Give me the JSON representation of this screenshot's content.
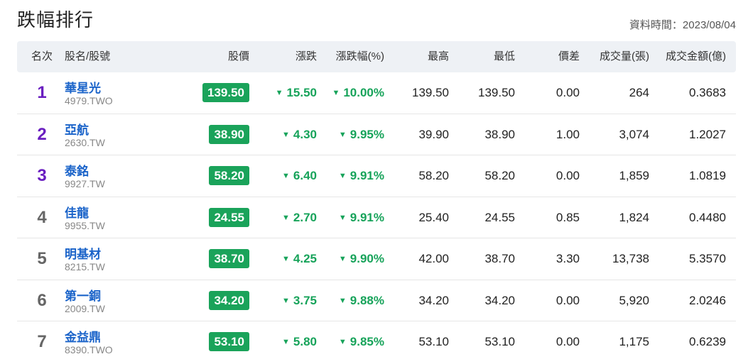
{
  "header": {
    "title": "跌幅排行",
    "updated": "資料時間：2023/08/04"
  },
  "columns": {
    "rank": "名次",
    "name": "股名/股號",
    "price": "股價",
    "change": "漲跌",
    "change_pct": "漲跌幅(%)",
    "high": "最高",
    "low": "最低",
    "diff": "價差",
    "volume": "成交量(張)",
    "amount": "成交金額(億)"
  },
  "colors": {
    "down_green": "#17a35a",
    "price_badge": "#1aa35a",
    "top_rank": "#6a1fc0",
    "stock_link": "#1a63c9"
  },
  "rows": [
    {
      "rank": "1",
      "name": "華星光",
      "code": "4979.TWO",
      "price": "139.50",
      "change": "15.50",
      "change_pct": "10.00%",
      "high": "139.50",
      "low": "139.50",
      "diff": "0.00",
      "volume": "264",
      "amount": "0.3683"
    },
    {
      "rank": "2",
      "name": "亞航",
      "code": "2630.TW",
      "price": "38.90",
      "change": "4.30",
      "change_pct": "9.95%",
      "high": "39.90",
      "low": "38.90",
      "diff": "1.00",
      "volume": "3,074",
      "amount": "1.2027"
    },
    {
      "rank": "3",
      "name": "泰銘",
      "code": "9927.TW",
      "price": "58.20",
      "change": "6.40",
      "change_pct": "9.91%",
      "high": "58.20",
      "low": "58.20",
      "diff": "0.00",
      "volume": "1,859",
      "amount": "1.0819"
    },
    {
      "rank": "4",
      "name": "佳龍",
      "code": "9955.TW",
      "price": "24.55",
      "change": "2.70",
      "change_pct": "9.91%",
      "high": "25.40",
      "low": "24.55",
      "diff": "0.85",
      "volume": "1,824",
      "amount": "0.4480"
    },
    {
      "rank": "5",
      "name": "明基材",
      "code": "8215.TW",
      "price": "38.70",
      "change": "4.25",
      "change_pct": "9.90%",
      "high": "42.00",
      "low": "38.70",
      "diff": "3.30",
      "volume": "13,738",
      "amount": "5.3570"
    },
    {
      "rank": "6",
      "name": "第一銅",
      "code": "2009.TW",
      "price": "34.20",
      "change": "3.75",
      "change_pct": "9.88%",
      "high": "34.20",
      "low": "34.20",
      "diff": "0.00",
      "volume": "5,920",
      "amount": "2.0246"
    },
    {
      "rank": "7",
      "name": "金益鼎",
      "code": "8390.TWO",
      "price": "53.10",
      "change": "5.80",
      "change_pct": "9.85%",
      "high": "53.10",
      "low": "53.10",
      "diff": "0.00",
      "volume": "1,175",
      "amount": "0.6239"
    }
  ]
}
